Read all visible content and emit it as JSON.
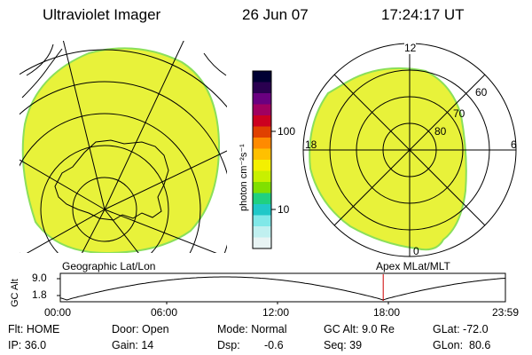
{
  "header": {
    "instrument": "Ultraviolet Imager",
    "date": "26 Jun 07",
    "time": "17:24:17 UT"
  },
  "left_panel": {
    "label": "Geographic Lat/Lon"
  },
  "right_panel": {
    "label": "Apex MLat/MLT",
    "mlt_labels": {
      "top": "12",
      "left": "18",
      "right": "6",
      "bottom": "0"
    },
    "lat_labels": [
      "60",
      "70",
      "80"
    ]
  },
  "colorbar": {
    "unit_label": "photon cm⁻²s⁻¹",
    "ticks": [
      "100",
      "10"
    ],
    "colors": [
      "#000033",
      "#2a0050",
      "#6a0080",
      "#a00060",
      "#cc0020",
      "#e04000",
      "#ff8a00",
      "#ffc000",
      "#f4f000",
      "#c8f000",
      "#80e000",
      "#20d080",
      "#20c8c8",
      "#80e8e8",
      "#c0f0f0",
      "#e8f4f4"
    ]
  },
  "timeline": {
    "y_label": "GC Alt",
    "y_ticks": [
      "9.0",
      "1.8"
    ],
    "x_ticks": [
      "00:00",
      "06:00",
      "12:00",
      "18:00",
      "23:59"
    ],
    "current_fraction": 0.7255
  },
  "info": {
    "flt": "Flt: HOME",
    "ip": "IP: 36.0",
    "door": "Door: Open",
    "gain": "Gain: 14",
    "mode": "Mode: Normal",
    "dsp_label": "Dsp:",
    "dsp_value": "-0.6",
    "gcalt": "GC Alt: 9.0 Re",
    "seq": "Seq: 39",
    "glat": "GLat: -72.0",
    "glon": "GLon:  80.6"
  },
  "colors": {
    "image_fill": "#e8f23a",
    "image_edge": "#8adf5a",
    "marker": "#cc0000"
  }
}
